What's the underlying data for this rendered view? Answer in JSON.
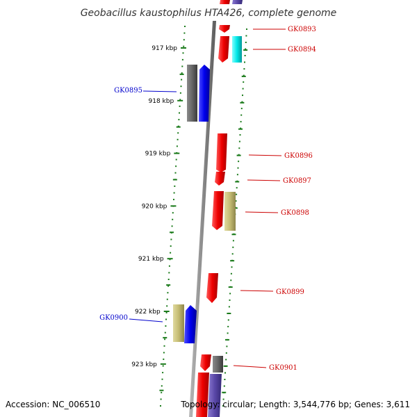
{
  "header": {
    "title": "Geobacillus kaustophilus HTA426, complete genome"
  },
  "footer": {
    "accession": "Accession: NC_006510",
    "summary": "Topology: circular; Length: 3,544,776 bp; Genes: 3,611"
  },
  "colors": {
    "axis": "#8c8c8c",
    "tick": "#1a7a1a",
    "left_label": "#0000cc",
    "right_label": "#cc0000"
  },
  "coordinate_labels": [
    {
      "kbp": 917,
      "label": "917 kbp"
    },
    {
      "kbp": 918,
      "label": "918 kbp"
    },
    {
      "kbp": 919,
      "label": "919 kbp"
    },
    {
      "kbp": 920,
      "label": "920 kbp"
    },
    {
      "kbp": 921,
      "label": "921 kbp"
    },
    {
      "kbp": 922,
      "label": "922 kbp"
    },
    {
      "kbp": 923,
      "label": "923 kbp"
    }
  ],
  "genes": [
    {
      "id": "GK0893",
      "labeled": true
    },
    {
      "id": "GK0894",
      "labeled": true
    },
    {
      "id": "GK0895",
      "labeled": true
    },
    {
      "id": "GK0896",
      "labeled": true
    },
    {
      "id": "GK0897",
      "labeled": true
    },
    {
      "id": "GK0898",
      "labeled": true
    },
    {
      "id": "GK0899",
      "labeled": true
    },
    {
      "id": "GK0900",
      "labeled": true
    },
    {
      "id": "GK0901",
      "labeled": true
    }
  ]
}
